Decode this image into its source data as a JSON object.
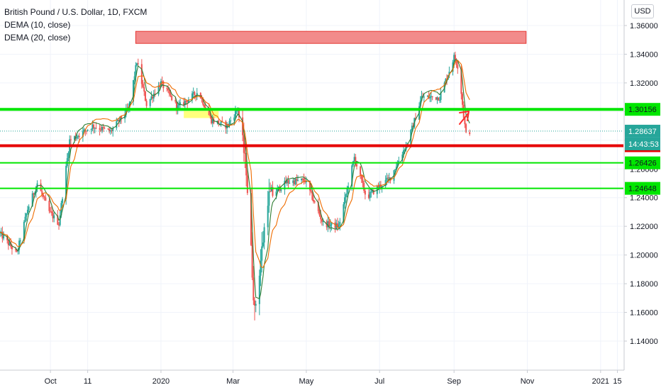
{
  "legend": {
    "symbol": "British Pound / U.S. Dollar, 1D, FXCM",
    "indicator1": "DEMA (10, close)",
    "indicator2": "DEMA (20, close)"
  },
  "currency": "USD",
  "colors": {
    "up": "#26a69a",
    "down": "#ef5350",
    "dema10": "#2e7d32",
    "dema20": "#ef6c00",
    "support_green": "#00e600",
    "resistance_red": "#e60000",
    "zone_red": "#f28b8b",
    "zone_yellow": "#ffff66",
    "last_price": "#26a69a"
  },
  "chart_data": {
    "type": "candlestick",
    "ylim": [
      1.13,
      1.37
    ],
    "yticks": [
      "1.36000",
      "1.34000",
      "1.32000",
      "1.30000",
      "1.28000",
      "1.26000",
      "1.24000",
      "1.22000",
      "1.20000",
      "1.18000",
      "1.16000",
      "1.14000"
    ],
    "x_start": "2019-08-20",
    "x_end": "2021-01-20",
    "xticks": [
      {
        "date": "2019-10-01",
        "label": "Oct"
      },
      {
        "date": "2019-11-01",
        "label": "11"
      },
      {
        "date": "2020-01-01",
        "label": "2020"
      },
      {
        "date": "2020-03-01",
        "label": "Mar"
      },
      {
        "date": "2020-05-01",
        "label": "May"
      },
      {
        "date": "2020-07-01",
        "label": "Jul"
      },
      {
        "date": "2020-09-01",
        "label": "Sep"
      },
      {
        "date": "2020-11-01",
        "label": "Nov"
      },
      {
        "date": "2021-01-01",
        "label": "2021"
      },
      {
        "date": "2021-01-15",
        "label": "15"
      }
    ],
    "price_path": [
      [
        "2019-08-20",
        1.215
      ],
      [
        "2019-09-03",
        1.201
      ],
      [
        "2019-09-12",
        1.232
      ],
      [
        "2019-09-20",
        1.25
      ],
      [
        "2019-09-30",
        1.23
      ],
      [
        "2019-10-08",
        1.222
      ],
      [
        "2019-10-17",
        1.28
      ],
      [
        "2019-10-25",
        1.284
      ],
      [
        "2019-11-05",
        1.29
      ],
      [
        "2019-11-20",
        1.286
      ],
      [
        "2019-12-05",
        1.302
      ],
      [
        "2019-12-12",
        1.335
      ],
      [
        "2019-12-20",
        1.305
      ],
      [
        "2020-01-01",
        1.32
      ],
      [
        "2020-01-15",
        1.303
      ],
      [
        "2020-02-01",
        1.314
      ],
      [
        "2020-02-12",
        1.294
      ],
      [
        "2020-02-25",
        1.29
      ],
      [
        "2020-03-05",
        1.302
      ],
      [
        "2020-03-12",
        1.26
      ],
      [
        "2020-03-19",
        1.16
      ],
      [
        "2020-03-30",
        1.24
      ],
      [
        "2020-04-15",
        1.251
      ],
      [
        "2020-04-30",
        1.252
      ],
      [
        "2020-05-15",
        1.222
      ],
      [
        "2020-05-28",
        1.22
      ],
      [
        "2020-06-10",
        1.268
      ],
      [
        "2020-06-20",
        1.24
      ],
      [
        "2020-07-01",
        1.248
      ],
      [
        "2020-07-10",
        1.254
      ],
      [
        "2020-07-25",
        1.28
      ],
      [
        "2020-08-05",
        1.31
      ],
      [
        "2020-08-20",
        1.31
      ],
      [
        "2020-09-01",
        1.338
      ],
      [
        "2020-09-05",
        1.33
      ],
      [
        "2020-09-09",
        1.297
      ],
      [
        "2020-09-11",
        1.284
      ],
      [
        "2020-09-14",
        1.2864
      ]
    ],
    "horizontal_lines": [
      {
        "price": 1.30156,
        "label": "1.30156",
        "kind": "support"
      },
      {
        "price": 1.27621,
        "label": "1.27621",
        "kind": "resistance"
      },
      {
        "price": 1.26426,
        "label": "1.26426",
        "kind": "support"
      },
      {
        "price": 1.24648,
        "label": "1.24648",
        "kind": "support"
      }
    ],
    "last_price": {
      "label": "1.28637",
      "countdown": "14:43:53",
      "value": 1.28637
    },
    "zones": [
      {
        "kind": "red",
        "from": "2019-12-11",
        "to": "2020-10-31",
        "high": 1.352,
        "low": 1.3505
      },
      {
        "kind": "yellow",
        "from": "2020-01-20",
        "to": "2020-02-18",
        "high": 1.3005,
        "low": 1.2955
      }
    ],
    "annotation": "arrow-up-right"
  }
}
